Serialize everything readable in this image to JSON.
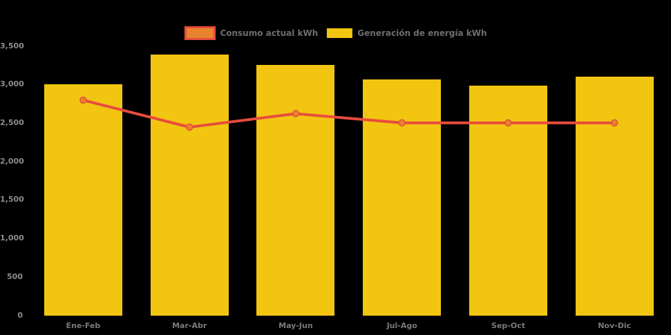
{
  "chart_data": {
    "type": "bar",
    "title": "",
    "categories": [
      "Ene-Feb",
      "Mar-Abr",
      "May-Jun",
      "Jul-Ago",
      "Sep-Oct",
      "Nov-Dic"
    ],
    "series": [
      {
        "name": "Consumo actual kWh",
        "type": "line",
        "color": "#E74C3C",
        "marker_color": "#E8832D",
        "values": [
          2795,
          2445,
          2620,
          2500,
          2500,
          2500
        ]
      },
      {
        "name": "Generación de energía kWh",
        "type": "bar",
        "color": "#F2C511",
        "values": [
          3000,
          3385,
          3250,
          3065,
          2985,
          3105
        ]
      }
    ],
    "xlabel": "",
    "ylabel": "",
    "ylim": [
      0,
      3500
    ],
    "y_tick_step": 500,
    "grid": false,
    "legend_position": "top",
    "background": "#000000"
  },
  "legend": {
    "items": [
      {
        "label": "Consumo actual kWh",
        "swatch_fill": "#E8832D",
        "swatch_border": "#E74C3C",
        "kind": "line"
      },
      {
        "label": "Generación de energía kWh",
        "swatch_fill": "#F2C511",
        "kind": "bar"
      }
    ]
  },
  "y_axis": {
    "ticks": [
      "3,500",
      "3,000",
      "2,500",
      "2,000",
      "1,500",
      "1,000",
      "500",
      "0"
    ],
    "tick_values": [
      3500,
      3000,
      2500,
      2000,
      1500,
      1000,
      500,
      0
    ]
  },
  "x_axis": {
    "categories": [
      "Ene-Feb",
      "Mar-Abr",
      "May-Jun",
      "Jul-Ago",
      "Sep-Oct",
      "Nov-Dic"
    ]
  }
}
